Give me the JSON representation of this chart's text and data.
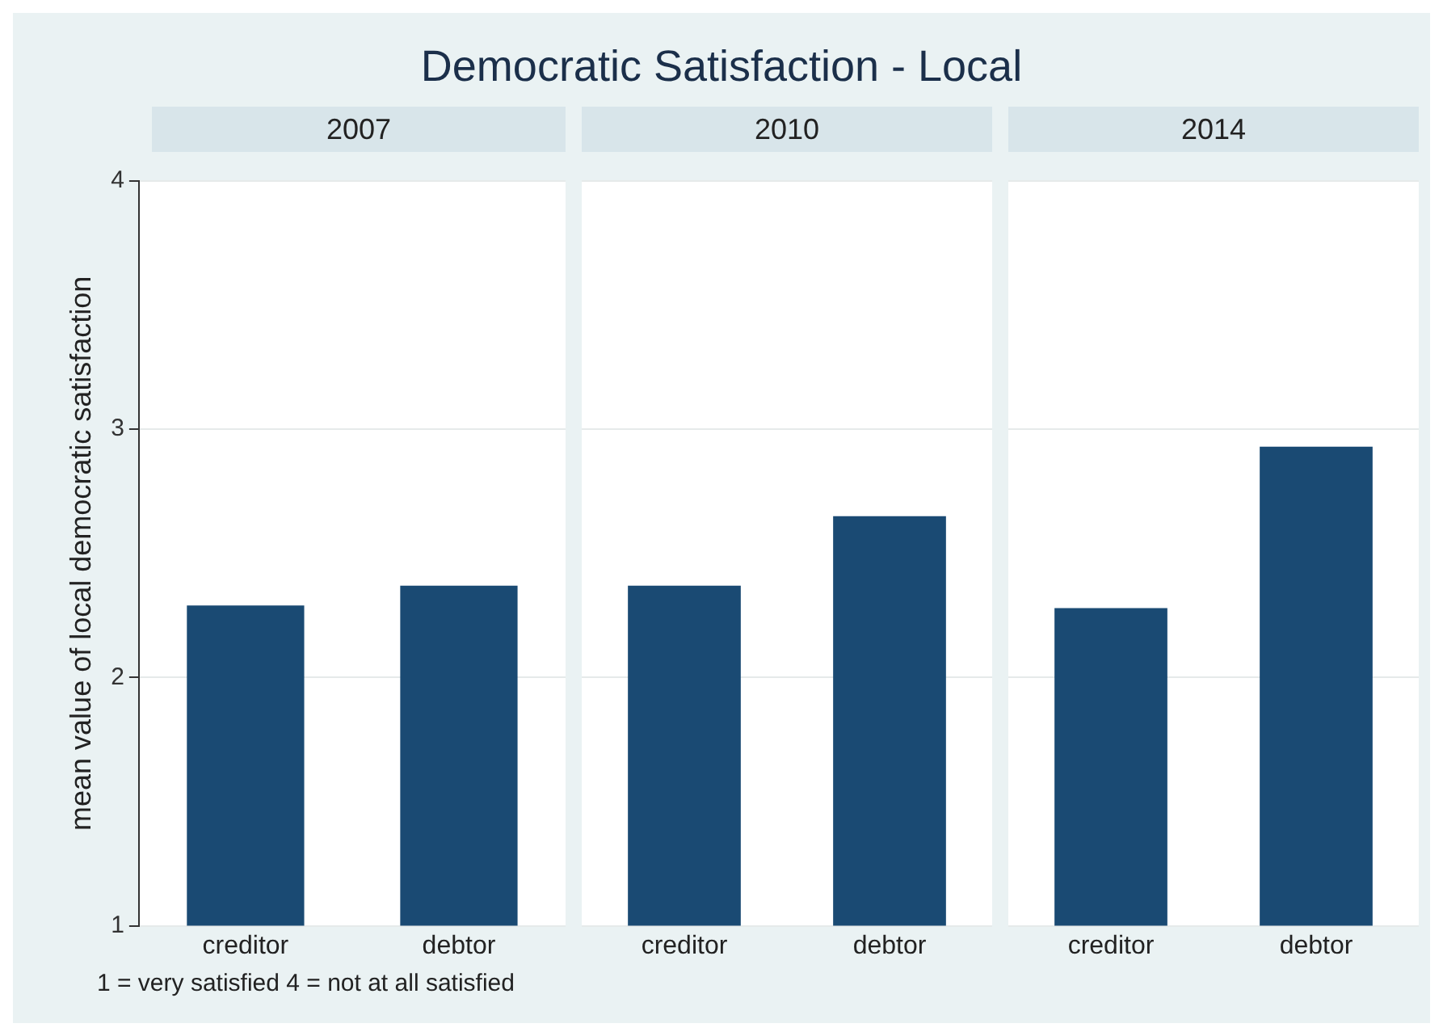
{
  "chart_data": [
    {
      "type": "other",
      "title": "Democratic Satisfaction - Local",
      "annotations": [
        "1 = very satisfied 4 = not at all satisfied"
      ]
    },
    {
      "type": "bar",
      "title": "2007",
      "ylabel": "mean value of local democratic satisfaction",
      "categories": [
        "creditor",
        "debtor"
      ],
      "values": [
        2.29,
        2.37
      ],
      "color": "#1a4a73",
      "ylim": [
        1,
        4
      ],
      "yticks": [
        1,
        2,
        3,
        4
      ],
      "grid": "y"
    },
    {
      "type": "bar",
      "title": "2010",
      "categories": [
        "creditor",
        "debtor"
      ],
      "values": [
        2.37,
        2.65
      ],
      "color": "#1a4a73",
      "ylim": [
        1,
        4
      ],
      "yticks": [
        1,
        2,
        3,
        4
      ],
      "grid": "y",
      "tick_labels": "x"
    },
    {
      "type": "bar",
      "title": "2014",
      "categories": [
        "creditor",
        "debtor"
      ],
      "values": [
        2.28,
        2.93
      ],
      "color": "#1a4a73",
      "ylim": [
        1,
        4
      ],
      "yticks": [
        1,
        2,
        3,
        4
      ],
      "grid": "y",
      "tick_labels": "x"
    }
  ]
}
